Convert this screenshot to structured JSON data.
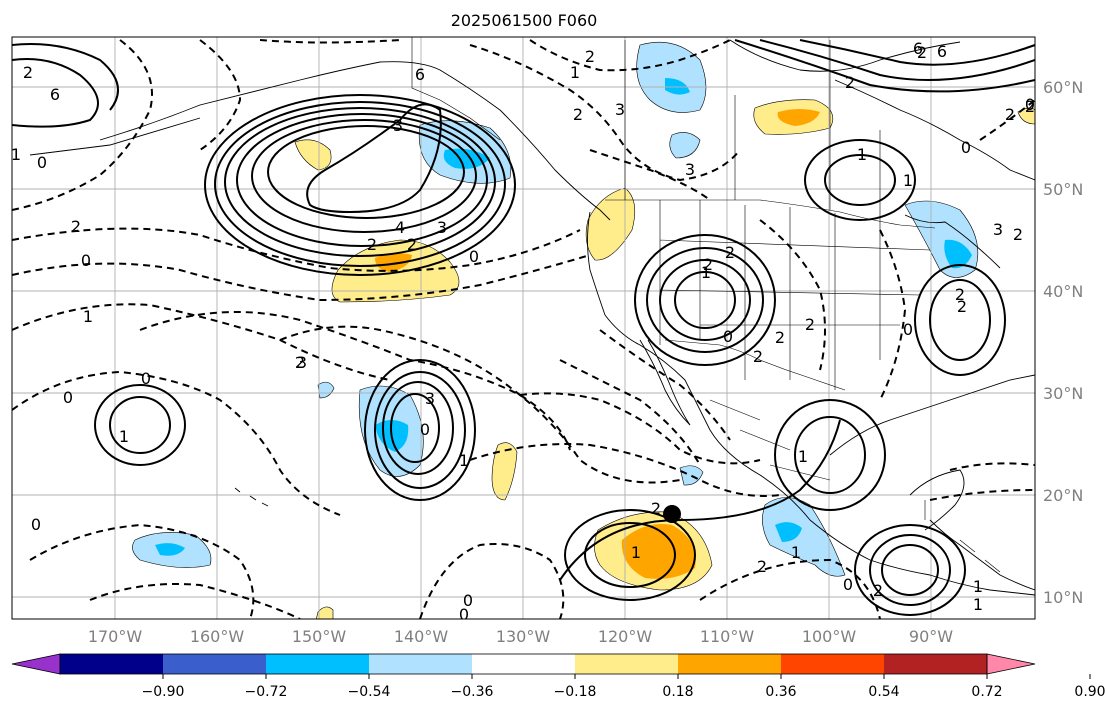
{
  "title": "2025061500 F060",
  "map": {
    "lon_labels": [
      "170°W",
      "160°W",
      "150°W",
      "140°W",
      "130°W",
      "120°W",
      "110°W",
      "100°W",
      "90°W"
    ],
    "lat_labels": [
      "60°N",
      "50°N",
      "40°N",
      "30°N",
      "20°N",
      "10°N"
    ],
    "grid": true,
    "contour_labels": [
      "2",
      "6",
      "6",
      "2",
      "2",
      "3",
      "2",
      "2",
      "1",
      "6",
      "4",
      "3",
      "2",
      "2",
      "0",
      "3",
      "2",
      "0",
      "1",
      "3",
      "0",
      "0",
      "3",
      "3",
      "1",
      "1",
      "0",
      "2",
      "0",
      "2",
      "2",
      "2",
      "1",
      "1",
      "0",
      "0",
      "2",
      "1",
      "2",
      "1",
      "2",
      "1",
      "0",
      "2",
      "1",
      "1",
      "3",
      "2",
      "0",
      "0",
      "0",
      "1",
      "2",
      "1",
      "6",
      "2",
      "0",
      "0",
      "2",
      "2",
      "2"
    ],
    "marker": "black-dot"
  },
  "colorbar": {
    "ticks": [
      "−0.90",
      "−0.72",
      "−0.54",
      "−0.36",
      "−0.18",
      "0.18",
      "0.36",
      "0.54",
      "0.72",
      "0.90"
    ],
    "colors": [
      "#9932cc",
      "#00008b",
      "#3a5fcd",
      "#00bfff",
      "#b0e2ff",
      "#ffffff",
      "#ffec8b",
      "#ffa500",
      "#ff4500",
      "#b22222",
      "#ff88aa"
    ],
    "extend": "both"
  }
}
